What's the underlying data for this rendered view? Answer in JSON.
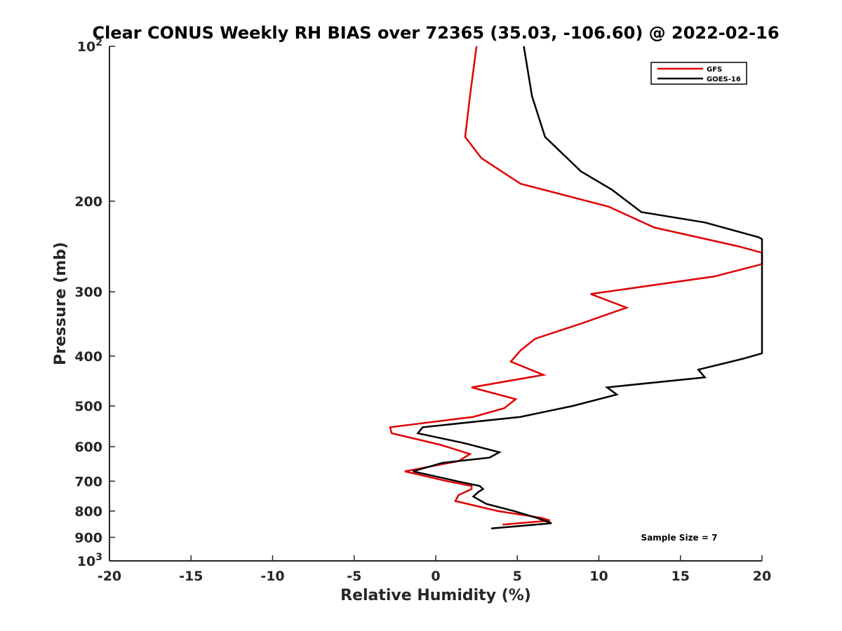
{
  "chart_data": {
    "type": "line",
    "title": "Clear CONUS Weekly RH BIAS over 72365 (35.03, -106.60) @ 2022-02-16",
    "xlabel": "Relative Humidity (%)",
    "ylabel": "Pressure (mb)",
    "xlim": [
      -20,
      20
    ],
    "ylim": [
      100,
      1000
    ],
    "y_scale": "log",
    "y_reversed": true,
    "x_ticks": [
      "-20",
      "-15",
      "-10",
      "-5",
      "0",
      "5",
      "10",
      "15",
      "20"
    ],
    "y_ticks": [
      {
        "value": 100,
        "base": "10",
        "exp": "2"
      },
      {
        "value": 200,
        "label": "200"
      },
      {
        "value": 300,
        "label": "300"
      },
      {
        "value": 400,
        "label": "400"
      },
      {
        "value": 500,
        "label": "500"
      },
      {
        "value": 600,
        "label": "600"
      },
      {
        "value": 700,
        "label": "700"
      },
      {
        "value": 800,
        "label": "800"
      },
      {
        "value": 900,
        "label": "900"
      },
      {
        "value": 1000,
        "base": "10",
        "exp": "3"
      }
    ],
    "legend_position": "top-right",
    "grid": false,
    "annotation": "Sample Size = 7",
    "series": [
      {
        "name": "GFS",
        "color": "#e00000",
        "points": [
          [
            2.5,
            100
          ],
          [
            2.1,
            125
          ],
          [
            1.8,
            150
          ],
          [
            2.8,
            165
          ],
          [
            5.2,
            185
          ],
          [
            10.6,
            205
          ],
          [
            13.4,
            225
          ],
          [
            18.6,
            245
          ],
          [
            20.0,
            252
          ],
          [
            20.0,
            265
          ],
          [
            17.1,
            280
          ],
          [
            9.5,
            303
          ],
          [
            11.7,
            322
          ],
          [
            9.0,
            345
          ],
          [
            6.1,
            370
          ],
          [
            5.2,
            390
          ],
          [
            4.6,
            410
          ],
          [
            6.6,
            435
          ],
          [
            2.2,
            460
          ],
          [
            4.9,
            485
          ],
          [
            4.2,
            505
          ],
          [
            2.3,
            525
          ],
          [
            -2.8,
            550
          ],
          [
            -2.7,
            565
          ],
          [
            0.3,
            595
          ],
          [
            2.1,
            620
          ],
          [
            1.4,
            640
          ],
          [
            -1.9,
            670
          ],
          [
            0.7,
            700
          ],
          [
            2.2,
            715
          ],
          [
            2.2,
            725
          ],
          [
            1.4,
            745
          ],
          [
            1.2,
            765
          ],
          [
            3.8,
            800
          ],
          [
            6.5,
            825
          ],
          [
            7.0,
            835
          ],
          [
            4.1,
            850
          ]
        ]
      },
      {
        "name": "GOES-16",
        "color": "#000000",
        "points": [
          [
            5.4,
            100
          ],
          [
            5.9,
            125
          ],
          [
            6.7,
            150
          ],
          [
            8.9,
            175
          ],
          [
            10.8,
            190
          ],
          [
            12.6,
            210
          ],
          [
            16.5,
            220
          ],
          [
            19.8,
            235
          ],
          [
            20.0,
            237
          ],
          [
            20.0,
            395
          ],
          [
            18.8,
            405
          ],
          [
            16.1,
            425
          ],
          [
            16.5,
            440
          ],
          [
            10.5,
            460
          ],
          [
            11.1,
            475
          ],
          [
            8.4,
            500
          ],
          [
            5.2,
            525
          ],
          [
            -0.8,
            550
          ],
          [
            -1.1,
            565
          ],
          [
            1.7,
            590
          ],
          [
            3.9,
            615
          ],
          [
            3.3,
            630
          ],
          [
            0.4,
            645
          ],
          [
            -1.4,
            670
          ],
          [
            1.3,
            700
          ],
          [
            2.7,
            715
          ],
          [
            2.9,
            725
          ],
          [
            2.6,
            735
          ],
          [
            2.3,
            750
          ],
          [
            3.1,
            775
          ],
          [
            4.8,
            800
          ],
          [
            6.2,
            825
          ],
          [
            7.1,
            845
          ],
          [
            3.4,
            865
          ]
        ]
      }
    ]
  }
}
